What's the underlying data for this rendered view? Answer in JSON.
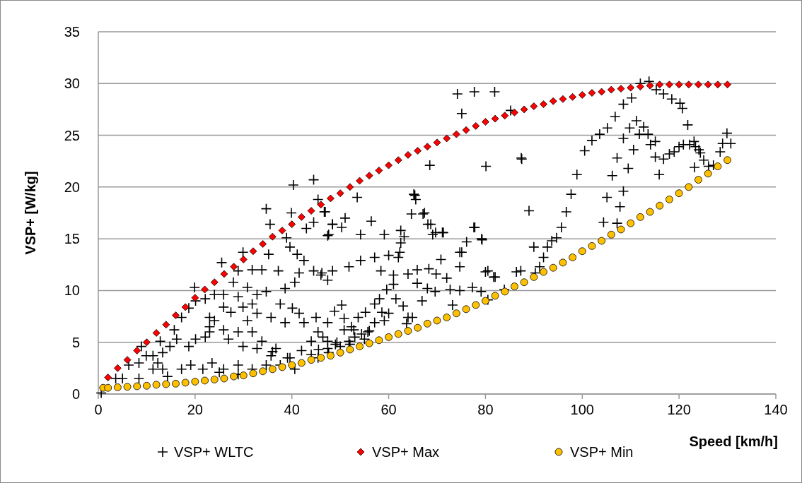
{
  "chart_data": {
    "type": "scatter",
    "xlabel": "Speed [km/h]",
    "ylabel": "VSP+ [W/kg]",
    "xlim": [
      0,
      140
    ],
    "xticks": [
      0,
      20,
      40,
      60,
      80,
      100,
      120,
      140
    ],
    "ylim": [
      0,
      35
    ],
    "yticks": [
      0,
      5,
      10,
      15,
      20,
      25,
      30,
      35
    ],
    "grid": "y",
    "legend": "bottom",
    "series": [
      {
        "name": "VSP+ WLTC",
        "color": "#000000",
        "marker": "cross",
        "x": [
          74.2,
          77.7,
          75.1,
          85.2,
          80.1,
          87.5,
          68.5,
          89,
          77.6,
          79.2,
          75.1,
          69.7,
          71.1,
          65.2,
          65.6,
          67.4,
          68.7,
          113.8,
          112,
          110.2,
          108.5,
          106.8,
          105.2,
          103.6,
          102,
          100.5,
          98.9,
          97.7,
          96.7,
          95.7,
          94.7,
          93.7,
          92.8,
          92,
          90,
          91.2,
          87.3,
          87.4,
          81.9,
          115.3,
          116.8,
          118.5,
          120.2,
          120.7,
          121.8,
          123.1,
          124.1,
          125.1,
          126.1,
          127.1,
          128.5,
          129,
          129.9,
          130.7,
          111.2,
          109.8,
          112.7,
          108.5,
          111.8,
          113.6,
          115.1,
          114.1,
          115.1,
          116.8,
          118,
          119,
          120,
          120.9,
          122.2,
          123.4,
          124.4,
          123.2,
          115.9,
          107.2,
          110.6,
          109.5,
          106.2,
          108.5,
          105.1,
          107.8,
          104.4,
          107.2,
          80,
          82,
          83.9,
          86.4,
          90.3,
          80.5,
          65.4,
          53.5,
          46.9,
          51,
          56.4,
          48.4,
          50.3,
          47.6,
          54.2,
          59.1,
          62.5,
          63.2,
          64.7,
          67.1,
          68.1,
          69.1,
          71.3,
          77.8,
          79.3,
          76.1,
          74.7,
          70.8,
          62.5,
          62.3,
          62,
          60,
          57.1,
          54.2,
          51.8,
          48.4,
          46.2,
          58.4,
          61,
          64,
          65.9,
          68.3,
          69.8,
          72,
          74.7,
          80.5,
          65.9,
          68,
          69.6,
          66.9,
          73.2,
          72.7,
          74.7,
          77.3,
          79.1,
          81.7,
          61,
          59.6,
          58.1,
          61.5,
          60,
          63,
          64,
          64.9,
          63.7,
          57.1,
          55.2,
          53.7,
          52.3,
          50.3,
          48.8,
          47.4,
          50.8,
          52.8,
          54.4,
          55.7,
          51.8,
          49.3,
          46.4,
          59.1,
          57.1,
          50.8,
          58.6,
          40.3,
          44.5,
          34.7,
          39.9,
          35.5,
          45.4,
          46.7,
          43,
          44.5,
          48.4,
          47.4,
          38.9,
          35.2,
          29.9,
          25.5,
          19.9,
          39.6,
          41.1,
          42.5,
          44.5,
          46,
          47.4,
          41.5,
          40.6,
          38.6,
          37.2,
          33.8,
          31.8,
          28.9,
          27.9,
          30.8,
          32.8,
          34.7,
          37.6,
          40.1,
          41.5,
          42.5,
          45,
          45.4,
          47.4,
          44,
          42,
          39.6,
          36.7,
          33.8,
          31.8,
          28.9,
          25.9,
          23,
          24,
          27.4,
          29.9,
          25.9,
          23,
          22.1,
          20.1,
          18.7,
          16.2,
          14.8,
          13.3,
          12.3,
          13.3,
          14.3,
          17.2,
          19.1,
          21.6,
          23.5,
          25.9,
          28.9,
          31.8,
          34.7,
          37.6,
          40.6,
          28.9,
          25,
          6.3,
          8.4,
          8.9,
          9.9,
          11.3,
          5,
          3.6,
          8.4,
          0.6,
          11.3,
          12.8,
          15.7,
          17.2,
          18.7,
          20.1,
          22.1,
          24,
          23,
          26.9,
          29.9,
          32.8,
          35.7,
          30.8,
          32.8,
          35.7,
          38.6,
          28.9,
          25.9,
          31.8,
          45.4,
          39.1,
          47.4,
          50,
          53,
          55,
          56,
          52,
          49,
          47.6,
          45.5,
          36,
          44
        ],
        "values": [
          29.0,
          29.2,
          27.1,
          27.4,
          22.0,
          22.7,
          22.1,
          17.7,
          16.1,
          15.0,
          13.7,
          15.6,
          15.6,
          19.3,
          18.8,
          17.5,
          16.4,
          30.2,
          30.0,
          28.6,
          28.0,
          26.8,
          25.7,
          25.1,
          24.5,
          23.5,
          21.2,
          19.3,
          17.6,
          16.1,
          15.1,
          14.8,
          14.2,
          13.2,
          14.2,
          12.3,
          11.9,
          22.8,
          29.2,
          29.4,
          29.0,
          28.5,
          28.1,
          27.6,
          26.0,
          24.4,
          23.6,
          22.6,
          22.0,
          22.1,
          23.4,
          24.2,
          25.2,
          24.2,
          26.4,
          25.7,
          25.8,
          24.7,
          25.1,
          25.1,
          24.4,
          24.1,
          22.9,
          22.7,
          23.2,
          23.4,
          23.9,
          24.1,
          24.1,
          23.9,
          23.3,
          21.9,
          21.2,
          22.8,
          23.6,
          21.8,
          21.1,
          19.6,
          19.0,
          18.1,
          16.6,
          16.5,
          11.8,
          11.3,
          10.1,
          11.8,
          11.7,
          9.1,
          19.2,
          19.0,
          17.6,
          17.0,
          16.7,
          16.4,
          16.1,
          15.4,
          15.4,
          15.4,
          15.8,
          15.2,
          17.4,
          17.4,
          16.4,
          15.4,
          15.6,
          16.1,
          14.9,
          14.7,
          13.7,
          13.0,
          14.6,
          13.7,
          13.2,
          13.4,
          13.2,
          12.9,
          12.3,
          11.9,
          11.7,
          11.9,
          11.5,
          11.6,
          12.0,
          12.1,
          11.6,
          11.2,
          12.3,
          11.9,
          10.7,
          10.2,
          9.9,
          9.0,
          8.6,
          10.1,
          10.0,
          10.3,
          9.9,
          11.3,
          10.6,
          10.1,
          9.2,
          9.2,
          7.8,
          8.5,
          7.4,
          7.4,
          6.8,
          8.7,
          7.9,
          7.4,
          6.5,
          8.6,
          8.0,
          6.9,
          6.2,
          6.2,
          5.8,
          6.0,
          5.1,
          5.0,
          5.5,
          7.1,
          6.9,
          7.3,
          7.9,
          20.2,
          20.7,
          17.9,
          17.5,
          16.4,
          18.8,
          17.6,
          16.0,
          16.6,
          16.4,
          15.3,
          15.1,
          13.5,
          13.7,
          12.7,
          10.3,
          14.2,
          13.5,
          12.9,
          11.9,
          11.5,
          11.0,
          11.7,
          10.8,
          10.2,
          11.9,
          12.0,
          12.0,
          11.9,
          10.8,
          10.3,
          9.6,
          9.9,
          8.7,
          8.3,
          7.8,
          6.9,
          7.4,
          6.0,
          5.1,
          5.1,
          4.2,
          3.5,
          4.4,
          5.1,
          6.0,
          6.0,
          6.2,
          6.0,
          7.1,
          7.9,
          8.4,
          8.4,
          7.4,
          5.5,
          5.3,
          4.6,
          5.3,
          4.6,
          4.0,
          3.0,
          2.4,
          1.7,
          2.4,
          2.8,
          2.4,
          3.0,
          2.4,
          2.8,
          2.4,
          2.8,
          2.8,
          2.4,
          1.9,
          2.1,
          2.8,
          3.0,
          4.6,
          3.7,
          3.7,
          1.5,
          1.5,
          1.5,
          0.1,
          2.4,
          5.1,
          6.2,
          7.4,
          8.3,
          9.0,
          9.2,
          9.6,
          6.5,
          5.3,
          4.6,
          4.4,
          3.7,
          7.1,
          7.8,
          7.4,
          6.9,
          9.4,
          9.6,
          8.7,
          3.5,
          3.5,
          4.4,
          4.6,
          5.5,
          5.3,
          6.1,
          4.8,
          4.8,
          4.0,
          4.3,
          4.1,
          3.8
        ]
      },
      {
        "name": "VSP+ Max",
        "color": "#ff0000",
        "marker": "diamond",
        "x": [
          2,
          4,
          6,
          8,
          10,
          12,
          14,
          16,
          18,
          20,
          22,
          24,
          26,
          28,
          30,
          32,
          34,
          36,
          38,
          40,
          42,
          44,
          46,
          48,
          50,
          52,
          54,
          56,
          58,
          60,
          62,
          64,
          66,
          68,
          70,
          72,
          74,
          76,
          78,
          80,
          82,
          84,
          86,
          88,
          90,
          92,
          94,
          96,
          98,
          100,
          102,
          104,
          106,
          108,
          110,
          112,
          114,
          116,
          118,
          120,
          122,
          124,
          126,
          128,
          130
        ],
        "values": [
          1.6,
          2.5,
          3.3,
          4.2,
          5.0,
          5.9,
          6.7,
          7.6,
          8.4,
          9.3,
          10.1,
          10.8,
          11.6,
          12.3,
          13.0,
          13.8,
          14.5,
          15.2,
          15.8,
          16.4,
          17.1,
          17.7,
          18.3,
          18.9,
          19.4,
          20.0,
          20.6,
          21.1,
          21.6,
          22.1,
          22.6,
          23.1,
          23.5,
          23.9,
          24.3,
          24.7,
          25.1,
          25.5,
          25.9,
          26.3,
          26.6,
          26.9,
          27.2,
          27.5,
          27.8,
          28.0,
          28.3,
          28.5,
          28.7,
          28.9,
          29.1,
          29.2,
          29.4,
          29.5,
          29.6,
          29.7,
          29.8,
          29.9,
          29.9,
          29.9,
          29.9,
          29.9,
          29.9,
          29.9,
          29.9
        ]
      },
      {
        "name": "VSP+ Min",
        "color": "#ffc000",
        "marker": "circle",
        "x": [
          1,
          2,
          4,
          6,
          8,
          10,
          12,
          14,
          16,
          18,
          20,
          22,
          24,
          26,
          28,
          30,
          32,
          34,
          36,
          38,
          40,
          42,
          44,
          46,
          48,
          50,
          52,
          54,
          56,
          58,
          60,
          62,
          64,
          66,
          68,
          70,
          72,
          74,
          76,
          78,
          80,
          82,
          84,
          86,
          88,
          90,
          92,
          94,
          96,
          98,
          100,
          102,
          104,
          106,
          108,
          110,
          112,
          114,
          116,
          118,
          120,
          122,
          124,
          126,
          128,
          130
        ],
        "values": [
          0.6,
          0.6,
          0.65,
          0.7,
          0.75,
          0.8,
          0.9,
          0.95,
          1.0,
          1.1,
          1.2,
          1.3,
          1.4,
          1.5,
          1.7,
          1.8,
          2.0,
          2.2,
          2.4,
          2.6,
          2.8,
          3.0,
          3.3,
          3.5,
          3.7,
          4.0,
          4.3,
          4.6,
          4.9,
          5.2,
          5.5,
          5.8,
          6.1,
          6.4,
          6.8,
          7.1,
          7.4,
          7.8,
          8.2,
          8.6,
          9.0,
          9.5,
          9.9,
          10.4,
          10.8,
          11.3,
          11.8,
          12.2,
          12.7,
          13.2,
          13.8,
          14.3,
          14.8,
          15.4,
          15.9,
          16.5,
          17.1,
          17.6,
          18.2,
          18.8,
          19.4,
          20.0,
          20.7,
          21.3,
          22.0,
          22.6
        ]
      }
    ]
  }
}
